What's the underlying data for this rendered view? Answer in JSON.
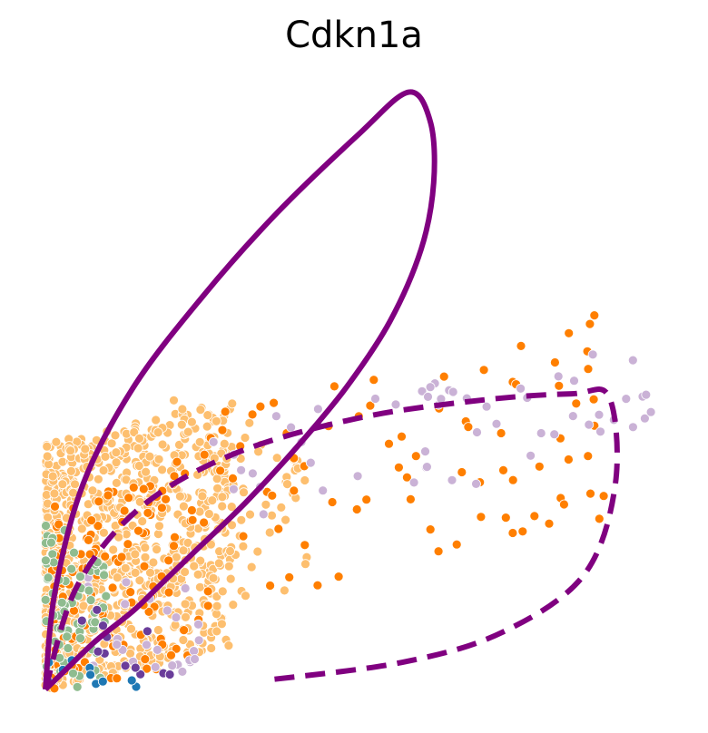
{
  "chart_data": {
    "type": "scatter",
    "title": "Cdkn1a",
    "xlabel": "",
    "ylabel": "",
    "xlim": [
      0,
      10
    ],
    "ylim": [
      0,
      10
    ],
    "grid": false,
    "axes_visible": false,
    "legend": "none",
    "point_groups": [
      {
        "color": "#fdbf6f",
        "n": 900,
        "xr": [
          0.0,
          3.0
        ],
        "yr": [
          0.0,
          4.8
        ],
        "skew": 1.6,
        "diag": 0.15
      },
      {
        "color": "#fdbf6f",
        "n": 70,
        "xr": [
          2.0,
          4.2
        ],
        "yr": [
          1.5,
          5.3
        ],
        "skew": 1.0,
        "diag": 0.0
      },
      {
        "color": "#ff7f00",
        "n": 120,
        "xr": [
          0.1,
          2.4
        ],
        "yr": [
          0.0,
          3.5
        ],
        "skew": 1.4,
        "diag": 0.1
      },
      {
        "color": "#ff7f00",
        "n": 85,
        "xr": [
          2.0,
          9.0
        ],
        "yr": [
          1.0,
          6.3
        ],
        "skew": 1.0,
        "diag": 0.35
      },
      {
        "color": "#cab2d6",
        "n": 55,
        "xr": [
          2.5,
          9.7
        ],
        "yr": [
          2.5,
          5.8
        ],
        "skew": 1.0,
        "diag": 0.45
      },
      {
        "color": "#cab2d6",
        "n": 25,
        "xr": [
          0.5,
          2.5
        ],
        "yr": [
          0.2,
          2.5
        ],
        "skew": 1.0,
        "diag": 0.0
      },
      {
        "color": "#8fbc8f",
        "n": 70,
        "xr": [
          0.0,
          1.0
        ],
        "yr": [
          0.0,
          3.0
        ],
        "skew": 1.5,
        "diag": 0.0
      },
      {
        "color": "#6a3d9a",
        "n": 12,
        "xr": [
          0.3,
          2.0
        ],
        "yr": [
          0.2,
          1.5
        ],
        "skew": 1.0,
        "diag": 0.0
      },
      {
        "color": "#1f78b4",
        "n": 10,
        "xr": [
          0.0,
          1.5
        ],
        "yr": [
          0.0,
          0.6
        ],
        "skew": 1.0,
        "diag": 0.0
      }
    ],
    "curves": [
      {
        "style": "solid",
        "color": "#800080",
        "x": [
          0.0,
          0.15,
          0.6,
          1.4,
          2.5,
          3.7,
          5.0,
          5.8,
          6.15,
          6.2,
          6.0,
          5.5,
          4.8,
          4.0,
          3.2,
          2.4,
          1.8,
          1.4,
          0.8,
          0.3,
          0.0
        ],
        "y": [
          0.0,
          1.6,
          3.4,
          5.0,
          6.5,
          7.9,
          9.2,
          9.9,
          9.4,
          8.4,
          7.3,
          6.1,
          5.0,
          4.0,
          3.1,
          2.3,
          1.7,
          1.3,
          0.8,
          0.3,
          0.0
        ]
      },
      {
        "style": "dashed",
        "color": "#800080",
        "x": [
          0.0,
          0.5,
          1.5,
          3.0,
          5.0,
          7.0,
          8.4,
          9.0,
          9.1,
          8.6,
          7.3,
          5.7,
          3.5
        ],
        "y": [
          0.0,
          1.7,
          3.0,
          3.9,
          4.5,
          4.8,
          4.9,
          4.85,
          3.4,
          1.9,
          0.95,
          0.45,
          0.15
        ]
      }
    ]
  }
}
